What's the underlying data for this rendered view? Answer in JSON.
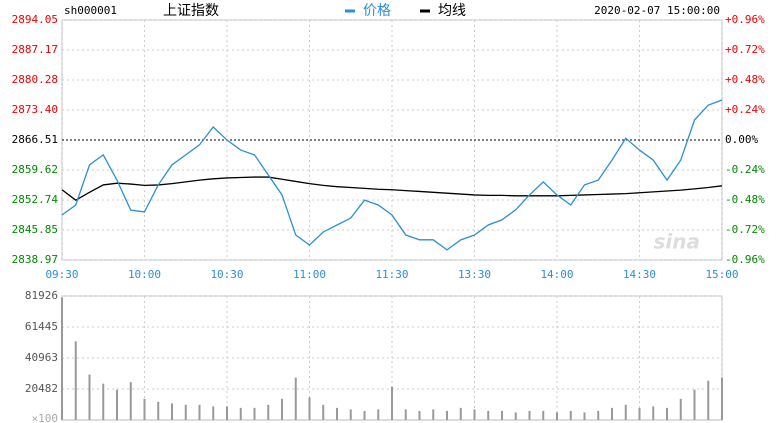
{
  "header": {
    "code": "sh000001",
    "name": "上证指数",
    "datetime": "2020-02-07 15:00:00",
    "watermark": "sina"
  },
  "chart_data": [
    {
      "type": "line",
      "x": [
        0,
        5,
        10,
        15,
        20,
        25,
        30,
        35,
        40,
        45,
        50,
        55,
        60,
        65,
        70,
        75,
        80,
        85,
        90,
        95,
        100,
        105,
        110,
        115,
        120,
        125,
        130,
        135,
        140,
        145,
        150,
        155,
        160,
        165,
        170,
        175,
        180,
        185,
        190,
        195,
        200,
        205,
        210,
        215,
        220,
        225,
        230,
        235,
        240
      ],
      "series": [
        {
          "name": "价格",
          "color": "#2a8fd5",
          "values": [
            2849.3,
            2851.6,
            2860.8,
            2863.1,
            2857.3,
            2850.4,
            2850.0,
            2856.2,
            2860.8,
            2863.1,
            2865.4,
            2869.5,
            2866.5,
            2864.2,
            2863.1,
            2858.5,
            2853.9,
            2844.7,
            2842.4,
            2845.4,
            2847.0,
            2848.6,
            2852.7,
            2851.6,
            2849.3,
            2844.7,
            2843.6,
            2843.6,
            2841.3,
            2843.6,
            2844.7,
            2847.0,
            2848.2,
            2850.5,
            2853.9,
            2856.9,
            2853.9,
            2851.6,
            2856.2,
            2857.3,
            2861.9,
            2866.9,
            2864.2,
            2861.9,
            2857.3,
            2861.9,
            2871.1,
            2874.5,
            2875.7
          ]
        },
        {
          "name": "均线",
          "color": "#000000",
          "values": [
            2855.1,
            2852.7,
            2854.5,
            2856.2,
            2856.6,
            2856.4,
            2856.1,
            2856.2,
            2856.5,
            2856.9,
            2857.3,
            2857.6,
            2857.8,
            2857.9,
            2858.0,
            2858.0,
            2857.5,
            2857.0,
            2856.5,
            2856.1,
            2855.8,
            2855.6,
            2855.4,
            2855.2,
            2855.1,
            2854.9,
            2854.7,
            2854.5,
            2854.3,
            2854.1,
            2853.9,
            2853.8,
            2853.8,
            2853.7,
            2853.7,
            2853.7,
            2853.7,
            2853.8,
            2853.9,
            2854.0,
            2854.1,
            2854.2,
            2854.4,
            2854.6,
            2854.8,
            2855.0,
            2855.3,
            2855.6,
            2856.0
          ]
        }
      ],
      "xlim": [
        0,
        240
      ],
      "xticks": [
        {
          "value": 0,
          "label": "09:30"
        },
        {
          "value": 30,
          "label": "10:00"
        },
        {
          "value": 60,
          "label": "10:30"
        },
        {
          "value": 90,
          "label": "11:00"
        },
        {
          "value": 120,
          "label": "11:30"
        },
        {
          "value": 150,
          "label": "13:30"
        },
        {
          "value": 180,
          "label": "14:00"
        },
        {
          "value": 210,
          "label": "14:30"
        },
        {
          "value": 240,
          "label": "15:00"
        }
      ],
      "ylim": [
        2838.97,
        2894.05
      ],
      "yticks": [
        2894.05,
        2887.17,
        2880.28,
        {
          "value": 2873.4,
          "label": "2873.40"
        },
        2866.51,
        2859.62,
        2852.74,
        2845.85,
        2838.97
      ],
      "y2lim": [
        -0.96,
        0.96
      ],
      "y2ticks": [
        {
          "value": 0.96,
          "label": "+0.96%"
        },
        {
          "value": 0.72,
          "label": "+0.72%"
        },
        {
          "value": 0.48,
          "label": "+0.48%"
        },
        {
          "value": 0.24,
          "label": "+0.24%"
        },
        {
          "value": 0,
          "label": "0.00%"
        },
        {
          "value": -0.24,
          "label": "-0.24%"
        },
        {
          "value": -0.48,
          "label": "-0.48%"
        },
        {
          "value": -0.72,
          "label": "-0.72%"
        },
        {
          "value": -0.96,
          "label": "-0.96%"
        }
      ],
      "grid": true
    },
    {
      "type": "bar",
      "x": [
        0,
        5,
        10,
        15,
        20,
        25,
        30,
        35,
        40,
        45,
        50,
        55,
        60,
        65,
        70,
        75,
        80,
        85,
        90,
        95,
        100,
        105,
        110,
        115,
        120,
        125,
        130,
        135,
        140,
        145,
        150,
        155,
        160,
        165,
        170,
        175,
        180,
        185,
        190,
        195,
        200,
        205,
        210,
        215,
        220,
        225,
        230,
        235,
        240
      ],
      "values": [
        81000,
        52000,
        30000,
        24000,
        20000,
        25000,
        14000,
        12000,
        11000,
        10000,
        10000,
        9000,
        9000,
        8000,
        8000,
        10000,
        14000,
        28000,
        15000,
        10000,
        8000,
        7000,
        6000,
        7000,
        22000,
        7000,
        6000,
        7000,
        6000,
        8000,
        7000,
        6000,
        6000,
        5000,
        6000,
        6000,
        5000,
        6000,
        5000,
        6000,
        8000,
        10000,
        8000,
        9000,
        8000,
        14000,
        20000,
        26000,
        28000
      ],
      "color": "#999999",
      "xlim": [
        0,
        240
      ],
      "ylim": [
        0,
        81926
      ],
      "yticks": [
        20482,
        40963,
        61445,
        81926
      ],
      "unit": "×100",
      "grid": true
    }
  ]
}
